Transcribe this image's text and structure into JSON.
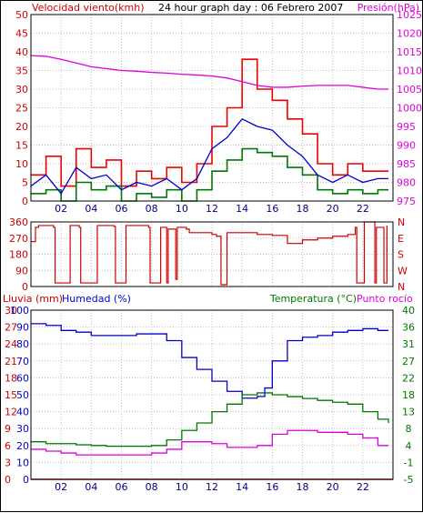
{
  "header": {
    "wind_label": "Velocidad viento(kmh)",
    "title": "24 hour graph day : 06 Febrero 2007",
    "pressure_label": "Presión(hPa)"
  },
  "lower_header": {
    "rain_label": "Lluvia (mm)",
    "humidity_label": "Humedad (%)",
    "temperature_label": "Temperatura (°C)",
    "dewpoint_label": "Punto rocío"
  },
  "colors": {
    "wind_gust": "#ee0000",
    "wind_avg": "#0000cc",
    "wind_min": "#007700",
    "pressure": "#dd00dd",
    "direction": "#cc0000",
    "humidity": "#0000cc",
    "temperature": "#007700",
    "dewpoint": "#dd00dd",
    "rain": "#cc0000",
    "grid": "#c0c0c0",
    "axis_left": "#cc0000",
    "axis_right": "#dd00dd"
  },
  "chart_data": [
    {
      "type": "line",
      "title": "24 hour graph day : 06 Febrero 2007",
      "xlabel": "",
      "x_tick_labels": [
        "02",
        "04",
        "06",
        "08",
        "10",
        "12",
        "14",
        "16",
        "18",
        "20",
        "22"
      ],
      "x_ticks": [
        2,
        4,
        6,
        8,
        10,
        12,
        14,
        16,
        18,
        20,
        22
      ],
      "xlim": [
        0,
        24
      ],
      "grid": true,
      "left_axis": {
        "label": "Velocidad viento(kmh)",
        "ticks": [
          0,
          5,
          10,
          15,
          20,
          25,
          30,
          35,
          40,
          45,
          50
        ],
        "range": [
          0,
          50
        ]
      },
      "right_axis": {
        "label": "Presión(hPa)",
        "ticks": [
          975,
          980,
          985,
          990,
          995,
          1000,
          1005,
          1010,
          1015,
          1020,
          1025
        ],
        "range": [
          975,
          1025
        ]
      },
      "series": [
        {
          "name": "Velocidad viento",
          "axis": "left",
          "x": [
            0,
            1,
            2,
            3,
            4,
            5,
            6,
            7,
            8,
            9,
            10,
            11,
            12,
            13,
            14,
            15,
            16,
            17,
            18,
            19,
            20,
            21,
            22,
            23,
            23.7
          ],
          "values": [
            7,
            12,
            4,
            14,
            9,
            11,
            4,
            8,
            6,
            9,
            5,
            10,
            20,
            25,
            38,
            30,
            27,
            22,
            18,
            10,
            7,
            10,
            8,
            8,
            8
          ]
        },
        {
          "name": "Media",
          "axis": "left",
          "x": [
            0,
            1,
            2,
            3,
            4,
            5,
            6,
            7,
            8,
            9,
            10,
            11,
            12,
            13,
            14,
            15,
            16,
            17,
            18,
            19,
            20,
            21,
            22,
            23,
            23.7
          ],
          "values": [
            4,
            7,
            2,
            9,
            6,
            7,
            3,
            5,
            4,
            6,
            3,
            6,
            14,
            17,
            22,
            20,
            19,
            15,
            12,
            7,
            5,
            7,
            5,
            6,
            6
          ]
        },
        {
          "name": "Mínima",
          "axis": "left",
          "x": [
            0,
            1,
            2,
            3,
            4,
            5,
            6,
            7,
            8,
            9,
            10,
            11,
            12,
            13,
            14,
            15,
            16,
            17,
            18,
            19,
            20,
            21,
            22,
            23,
            23.7
          ],
          "values": [
            2,
            3,
            0,
            5,
            3,
            4,
            0,
            2,
            1,
            3,
            0,
            3,
            8,
            11,
            14,
            13,
            12,
            9,
            7,
            3,
            2,
            3,
            2,
            3,
            3
          ]
        },
        {
          "name": "Presión",
          "axis": "right",
          "x": [
            0,
            1,
            2,
            3,
            4,
            5,
            6,
            7,
            8,
            9,
            10,
            11,
            12,
            13,
            14,
            15,
            16,
            17,
            18,
            19,
            20,
            21,
            22,
            23,
            23.7
          ],
          "values": [
            1014,
            1013.8,
            1013,
            1012,
            1011,
            1010.5,
            1010,
            1009.8,
            1009.5,
            1009.3,
            1009,
            1008.8,
            1008.5,
            1008,
            1007,
            1006,
            1005.5,
            1005.5,
            1005.8,
            1006,
            1006,
            1006,
            1005.5,
            1005,
            1005
          ]
        }
      ]
    },
    {
      "type": "line",
      "xlim": [
        0,
        24
      ],
      "grid": true,
      "left_axis": {
        "ticks": [
          0,
          90,
          180,
          270,
          360
        ],
        "range": [
          0,
          360
        ]
      },
      "right_axis": {
        "ticks": [
          "N",
          "E",
          "S",
          "W",
          "N"
        ]
      },
      "series": [
        {
          "name": "Dirección",
          "x": [
            0,
            0.3,
            0.5,
            1.5,
            1.6,
            2.5,
            2.6,
            3.2,
            3.3,
            4.3,
            4.4,
            5.5,
            5.6,
            6.2,
            6.3,
            7.8,
            7.9,
            8.5,
            8.6,
            9.0,
            9.1,
            9.6,
            9.7,
            10.3,
            10.5,
            12.0,
            12.3,
            12.6,
            13.0,
            14.0,
            15.0,
            16.0,
            17.0,
            18.0,
            19.0,
            20.0,
            21.0,
            21.5,
            21.6,
            22.0,
            22.1,
            22.8,
            22.9,
            23.4,
            23.6
          ],
          "values": [
            250,
            330,
            340,
            330,
            20,
            20,
            340,
            330,
            20,
            20,
            340,
            335,
            20,
            20,
            340,
            330,
            20,
            20,
            330,
            20,
            320,
            40,
            330,
            320,
            300,
            290,
            280,
            10,
            300,
            300,
            290,
            285,
            240,
            260,
            270,
            280,
            290,
            330,
            20,
            20,
            360,
            20,
            330,
            20,
            340
          ]
        }
      ]
    },
    {
      "type": "line",
      "xlim": [
        0,
        24
      ],
      "x_tick_labels": [
        "02",
        "04",
        "06",
        "08",
        "10",
        "12",
        "14",
        "16",
        "18",
        "20",
        "22"
      ],
      "x_ticks": [
        2,
        4,
        6,
        8,
        10,
        12,
        14,
        16,
        18,
        20,
        22
      ],
      "grid": true,
      "left_axis_rain": {
        "label": "Lluvia (mm)",
        "ticks": [
          0,
          3,
          6,
          9,
          12,
          15,
          18,
          21,
          24,
          27,
          30
        ],
        "range": [
          0,
          30
        ]
      },
      "left_axis_humidity": {
        "label": "Humedad (%)",
        "ticks": [
          0,
          10,
          20,
          30,
          40,
          50,
          60,
          70,
          80,
          90,
          100
        ],
        "range": [
          0,
          100
        ]
      },
      "right_axis": {
        "label": "Temperatura (°C)",
        "ticks": [
          -5,
          -1,
          4,
          8,
          13,
          18,
          22,
          27,
          31,
          36,
          40
        ],
        "range": [
          -5,
          40
        ]
      },
      "series": [
        {
          "name": "Humedad",
          "axis": "humidity",
          "x": [
            0,
            1,
            2,
            3,
            4,
            5,
            6,
            7,
            8,
            9,
            10,
            11,
            12,
            13,
            14,
            15,
            15.5,
            16,
            17,
            18,
            19,
            20,
            21,
            22,
            23,
            23.7
          ],
          "values": [
            92,
            91,
            88,
            87,
            85,
            85,
            85,
            86,
            86,
            82,
            72,
            65,
            58,
            52,
            48,
            49,
            54,
            70,
            82,
            84,
            85,
            87,
            88,
            89,
            88,
            88
          ]
        },
        {
          "name": "Temperatura",
          "axis": "temp",
          "x": [
            0,
            1,
            2,
            3,
            4,
            5,
            6,
            7,
            8,
            9,
            10,
            11,
            12,
            13,
            14,
            15,
            16,
            17,
            18,
            19,
            20,
            21,
            22,
            23,
            23.7
          ],
          "values": [
            5,
            4.5,
            4.5,
            4.2,
            4,
            3.8,
            3.8,
            3.8,
            4,
            5.5,
            8,
            10,
            13,
            15,
            17.5,
            18,
            17.5,
            17,
            16.5,
            16,
            15.5,
            15,
            13,
            11,
            10
          ]
        },
        {
          "name": "Punto rocío",
          "axis": "temp",
          "x": [
            0,
            1,
            2,
            3,
            4,
            5,
            6,
            7,
            8,
            9,
            10,
            11,
            12,
            13,
            14,
            15,
            16,
            17,
            18,
            19,
            20,
            21,
            22,
            23,
            23.7
          ],
          "values": [
            3,
            2.5,
            2,
            1.5,
            1.5,
            1.5,
            1.5,
            1.5,
            2,
            3,
            5,
            5,
            4.5,
            3.5,
            3.5,
            4,
            7,
            8,
            8,
            7.5,
            7.5,
            7,
            6,
            4,
            4
          ]
        },
        {
          "name": "Lluvia",
          "axis": "rain",
          "x": [
            0,
            24
          ],
          "values": [
            0,
            0
          ]
        }
      ]
    }
  ]
}
